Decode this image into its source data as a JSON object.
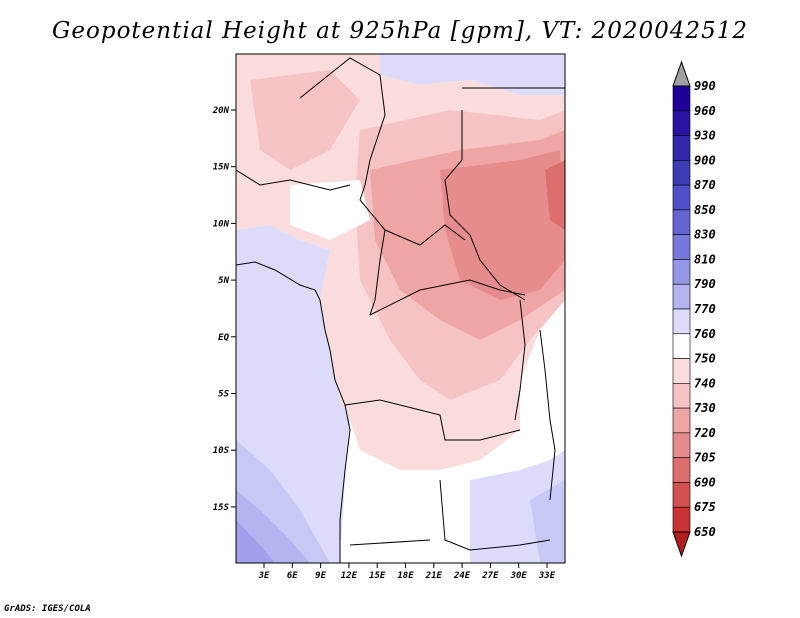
{
  "title": "Geopotential Height at 925hPa [gpm], VT: 2020042512",
  "footer": "GrADS: IGES/COLA",
  "map": {
    "lat_labels": [
      "20N",
      "15N",
      "10N",
      "5N",
      "EQ",
      "5S",
      "10S",
      "15S"
    ],
    "lon_labels": [
      "3E",
      "6E",
      "9E",
      "12E",
      "15E",
      "18E",
      "21E",
      "24E",
      "27E",
      "30E",
      "33E"
    ]
  },
  "colorbar": {
    "levels": [
      "990",
      "960",
      "930",
      "900",
      "870",
      "850",
      "830",
      "810",
      "790",
      "770",
      "760",
      "750",
      "740",
      "730",
      "720",
      "705",
      "690",
      "675",
      "650"
    ],
    "colors": {
      "top_arrow": "#a0a0a0",
      "bottom_arrow": "#b41e1e",
      "swatches": [
        "#1e0096",
        "#2814a0",
        "#3228aa",
        "#3c3cb4",
        "#5050c8",
        "#6464d2",
        "#7878dc",
        "#9696e6",
        "#b4b4f0",
        "#dcdcfa",
        "#ffffff",
        "#fadcdc",
        "#f5c3c3",
        "#f0a5a5",
        "#e68c8c",
        "#dc6e6e",
        "#d25050",
        "#c83232",
        "#b41e1e"
      ]
    }
  },
  "field_colors": {
    "sea_low": "#dcdcfa",
    "sea_deep": "#b4b4f0",
    "sea_deeper": "#a0a0ec",
    "white": "#ffffff",
    "pink1": "#fadcdc",
    "pink2": "#f5c3c3",
    "pink3": "#f0a5a5",
    "red1": "#e68c8c"
  }
}
